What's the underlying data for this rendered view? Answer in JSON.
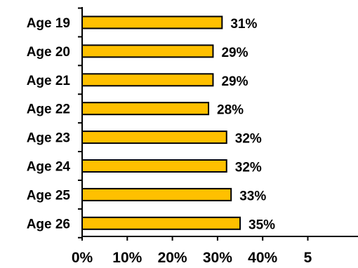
{
  "chart_data": {
    "type": "bar",
    "orientation": "horizontal",
    "categories": [
      "Age 19",
      "Age 20",
      "Age 21",
      "Age 22",
      "Age 23",
      "Age 24",
      "Age 25",
      "Age 26"
    ],
    "values": [
      31,
      29,
      29,
      28,
      32,
      32,
      33,
      35
    ],
    "data_labels": [
      "31%",
      "29%",
      "29%",
      "28%",
      "32%",
      "32%",
      "33%",
      "35%"
    ],
    "x_ticks": [
      "0%",
      "10%",
      "20%",
      "30%",
      "40%",
      "5"
    ],
    "xlim": [
      0,
      50
    ],
    "grid": false,
    "legend": "none",
    "colors": {
      "bar_fill": "#FFC000",
      "bar_stroke": "#000000",
      "axis": "#000000",
      "text": "#000000"
    }
  }
}
